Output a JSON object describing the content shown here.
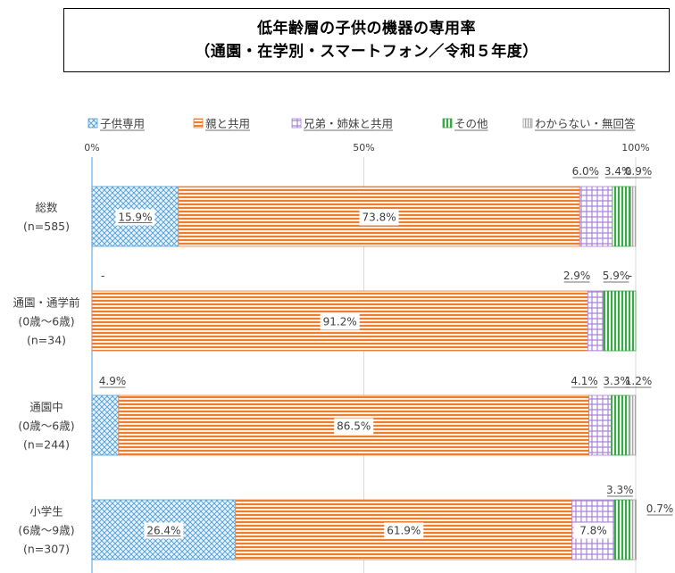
{
  "title": {
    "line1": "低年齢層の子供の機器の専用率",
    "line2": "（通園・在学別・スマートフォン／令和５年度）"
  },
  "chart_data": {
    "type": "bar",
    "orientation": "horizontal",
    "stacked": true,
    "percent": true,
    "xlim": [
      0,
      100
    ],
    "x_ticks": [
      "0%",
      "50%",
      "100%"
    ],
    "legend_position": "top",
    "categories": [
      [
        "総数",
        "(n=585)"
      ],
      [
        "通園・通学前",
        "(0歳～6歳)",
        "(n=34)"
      ],
      [
        "通園中",
        "(0歳～6歳)",
        "(n=244)"
      ],
      [
        "小学生",
        "(6歳～9歳)",
        "(n=307)"
      ]
    ],
    "series": [
      {
        "name": "子供専用",
        "values": [
          15.9,
          0,
          4.9,
          26.4
        ],
        "labels": [
          "15.9%",
          "-",
          "4.9%",
          "26.4%"
        ],
        "color": "#4f9fd8",
        "pattern": "crosshatch"
      },
      {
        "name": "親と共用",
        "values": [
          73.8,
          91.2,
          86.5,
          61.9
        ],
        "labels": [
          "73.8%",
          "91.2%",
          "86.5%",
          "61.9%"
        ],
        "color": "#ed7d31",
        "pattern": "horizontal"
      },
      {
        "name": "兄弟・姉妹と共用",
        "values": [
          6.0,
          2.9,
          4.1,
          7.8
        ],
        "labels": [
          "6.0%",
          "2.9%",
          "4.1%",
          "7.8%"
        ],
        "color": "#a982d8",
        "pattern": "grid"
      },
      {
        "name": "その他",
        "values": [
          3.4,
          5.9,
          3.3,
          3.3
        ],
        "labels": [
          "3.4%",
          "5.9%",
          "3.3%",
          "3.3%"
        ],
        "color": "#3aa845",
        "pattern": "vertical"
      },
      {
        "name": "わからない・無回答",
        "values": [
          0.9,
          0,
          1.2,
          0.7
        ],
        "labels": [
          "0.9%",
          "-",
          "1.2%",
          "0.7%"
        ],
        "color": "#a6a6a6",
        "pattern": "vertical-fine"
      }
    ]
  }
}
